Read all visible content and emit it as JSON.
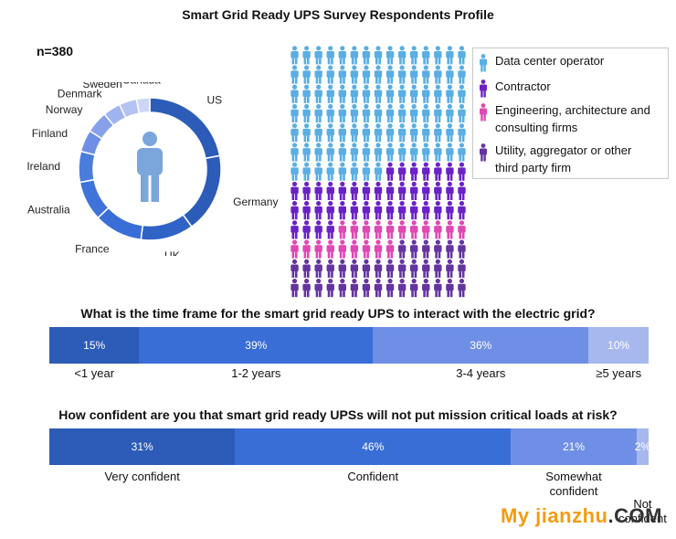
{
  "title": "Smart Grid Ready UPS Survey Respondents Profile",
  "respondents_label": "n=380",
  "watermark": {
    "part1": "My jianzhu",
    "part2": ".COM"
  },
  "colors": {
    "data_center": "#5aaee3",
    "contractor": "#6a22c7",
    "engineering": "#e048b4",
    "utility": "#6434a0",
    "bar_dark": "#2c5cb8",
    "bar_mid": "#3a6ed7",
    "bar_light": "#6f8fe6",
    "bar_pale": "#a7b8ef",
    "person_icon": "#7aa6dc"
  },
  "chart_data": [
    {
      "type": "pie",
      "variant": "donut",
      "title": "",
      "center_icon": "person-icon",
      "categories": [
        "US",
        "Germany",
        "UK",
        "France",
        "Australia",
        "Ireland",
        "Finland",
        "Norway",
        "Denmark",
        "Sweden",
        "Canada"
      ],
      "values": [
        22,
        18,
        12,
        11,
        9,
        7,
        5,
        5,
        4,
        4,
        3
      ],
      "colors": [
        "#2c5cb8",
        "#2c5cb8",
        "#2f63c6",
        "#3a6ed7",
        "#3f73d9",
        "#4a7cdc",
        "#6f8fe6",
        "#86a1ea",
        "#9fb3ee",
        "#b3c3f1",
        "#cdd7f5"
      ]
    },
    {
      "type": "pictograph",
      "title": "",
      "icon": "person-icon",
      "grid_columns": 15,
      "grid_rows": 13,
      "series": [
        {
          "name": "Data center operator",
          "count": 98,
          "color": "#5aaee3"
        },
        {
          "name": "Contractor",
          "count": 41,
          "color": "#6a22c7"
        },
        {
          "name": "Engineering, architecture and consulting firms",
          "count": 20,
          "color": "#e048b4"
        },
        {
          "name": "Utility, aggregator or other third party firm",
          "count": 36,
          "color": "#6434a0"
        }
      ]
    },
    {
      "type": "bar",
      "orientation": "horizontal",
      "stacked": true,
      "title": "What is the time frame for the smart grid ready UPS to interact with the electric grid?",
      "categories": [
        "<1 year",
        "1-2 years",
        "3-4 years",
        "≥5 years"
      ],
      "values": [
        15,
        39,
        36,
        10
      ],
      "value_labels": [
        "15%",
        "39%",
        "36%",
        "10%"
      ],
      "colors": [
        "#2c5cb8",
        "#3a6ed7",
        "#6f8fe6",
        "#a7b8ef"
      ]
    },
    {
      "type": "bar",
      "orientation": "horizontal",
      "stacked": true,
      "title": "How confident are you that smart grid ready UPSs will not put mission critical loads at risk?",
      "categories": [
        "Very confident",
        "Confident",
        "Somewhat confident",
        "Not confident"
      ],
      "values": [
        31,
        46,
        21,
        2
      ],
      "value_labels": [
        "31%",
        "46%",
        "21%",
        "2%"
      ],
      "colors": [
        "#2c5cb8",
        "#3a6ed7",
        "#6f8fe6",
        "#a7b8ef"
      ]
    }
  ]
}
